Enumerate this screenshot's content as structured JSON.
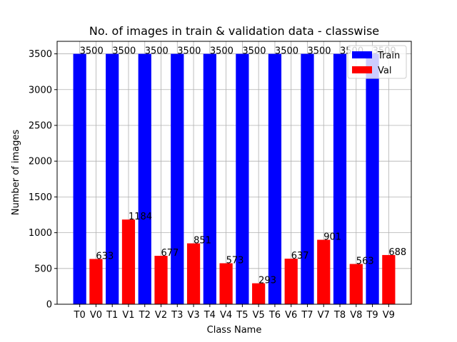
{
  "chart_data": {
    "type": "bar",
    "title": "No. of images in train & validation data - classwise",
    "x_label": "Class Name",
    "y_label": "Number of images",
    "categories": [
      "T0",
      "V0",
      "T1",
      "V1",
      "T2",
      "V2",
      "T3",
      "V3",
      "T4",
      "V4",
      "T5",
      "V5",
      "T6",
      "V6",
      "T7",
      "V7",
      "T8",
      "V8",
      "T9",
      "V9"
    ],
    "series": [
      {
        "name": "Train",
        "color": "#0000ff",
        "values": [
          3500,
          null,
          3500,
          null,
          3500,
          null,
          3500,
          null,
          3500,
          null,
          3500,
          null,
          3500,
          null,
          3500,
          null,
          3500,
          null,
          3500,
          null
        ]
      },
      {
        "name": "Val",
        "color": "#ff0000",
        "values": [
          null,
          633,
          null,
          1184,
          null,
          677,
          null,
          851,
          null,
          573,
          null,
          293,
          null,
          637,
          null,
          901,
          null,
          563,
          null,
          688
        ]
      }
    ],
    "ylim": [
      0,
      3675
    ],
    "yticks": [
      0,
      500,
      1000,
      1500,
      2000,
      2500,
      3000,
      3500
    ],
    "grid": true,
    "legend": "upper right"
  }
}
